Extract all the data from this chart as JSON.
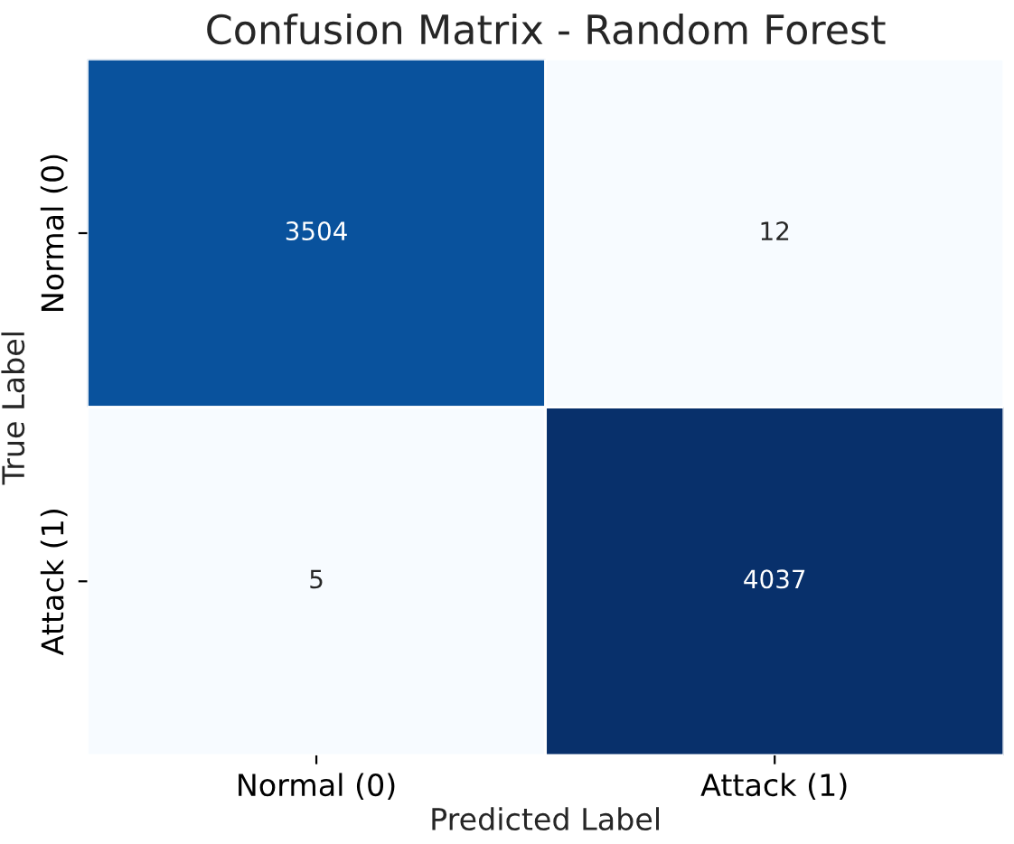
{
  "chart_data": {
    "type": "heatmap",
    "title": "Confusion Matrix - Random Forest",
    "xlabel": "Predicted Label",
    "ylabel": "True Label",
    "categories": [
      "Normal (0)",
      "Attack (1)"
    ],
    "y_categories": [
      "Normal (0)",
      "Attack (1)"
    ],
    "cells": [
      [
        3504,
        12
      ],
      [
        5,
        4037
      ]
    ],
    "data_labels": true
  }
}
